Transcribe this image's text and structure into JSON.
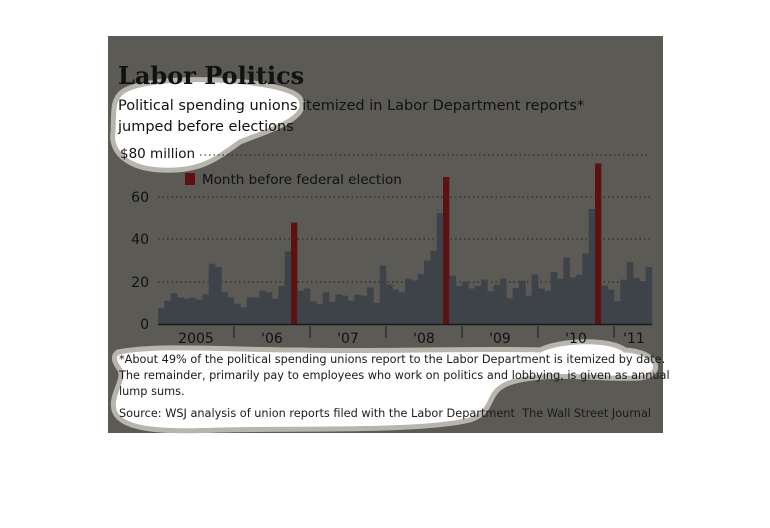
{
  "chart_data": {
    "type": "bar",
    "title": "Labor Politics",
    "subtitle_lines": [
      "Political spending unions itemized in Labor Department reports*",
      "jumped before elections"
    ],
    "ylabel": "$80 million",
    "yticks": [
      "0",
      "20",
      "40",
      "60"
    ],
    "ylim": [
      0,
      80
    ],
    "grid": true,
    "x_start": "Jan 2005",
    "x_end": "Jun 2011",
    "xtick_labels": [
      "2005",
      "'06",
      "'07",
      "'08",
      "'09",
      "'10",
      "'11"
    ],
    "legend": {
      "label": "Month before federal election",
      "placement": "top-left"
    },
    "values": [
      7.5,
      11,
      14.5,
      12.6,
      12,
      12.5,
      11.5,
      14,
      28.5,
      27,
      15,
      12.6,
      9.6,
      7.8,
      12.6,
      12.6,
      15.8,
      15,
      12,
      18,
      34.4,
      48,
      15.8,
      16.8,
      10.7,
      9.4,
      15,
      10.4,
      14,
      13.4,
      11,
      13.9,
      13.4,
      17.3,
      10,
      27.7,
      18.7,
      16.3,
      15,
      21.4,
      20.6,
      23.7,
      30,
      34.6,
      52.6,
      69.6,
      22.9,
      18,
      20,
      16.8,
      18,
      21,
      15.5,
      18.6,
      21.4,
      12.2,
      17,
      20.5,
      13.4,
      23.4,
      16.8,
      15.7,
      24.6,
      21.4,
      31.5,
      22,
      23.4,
      33.4,
      54.4,
      76,
      18.2,
      16.2,
      10.7,
      21,
      29.3,
      21.9,
      20.3,
      26.9
    ],
    "highlight_indices": [
      21,
      45,
      69
    ],
    "colors": {
      "bar": "#3e434a",
      "highlight": "#5c1212",
      "background": "#5b5a55"
    },
    "footnote_lines": [
      "*About 49% of the political spending unions report to the Labor Department is itemized by date.",
      "The remainder, primarily pay to employees who work on politics and lobbying, is given as annual",
      "lump sums."
    ],
    "source": "Source: WSJ analysis of union reports filed with the Labor Department",
    "credit": "The Wall Street Journal"
  }
}
